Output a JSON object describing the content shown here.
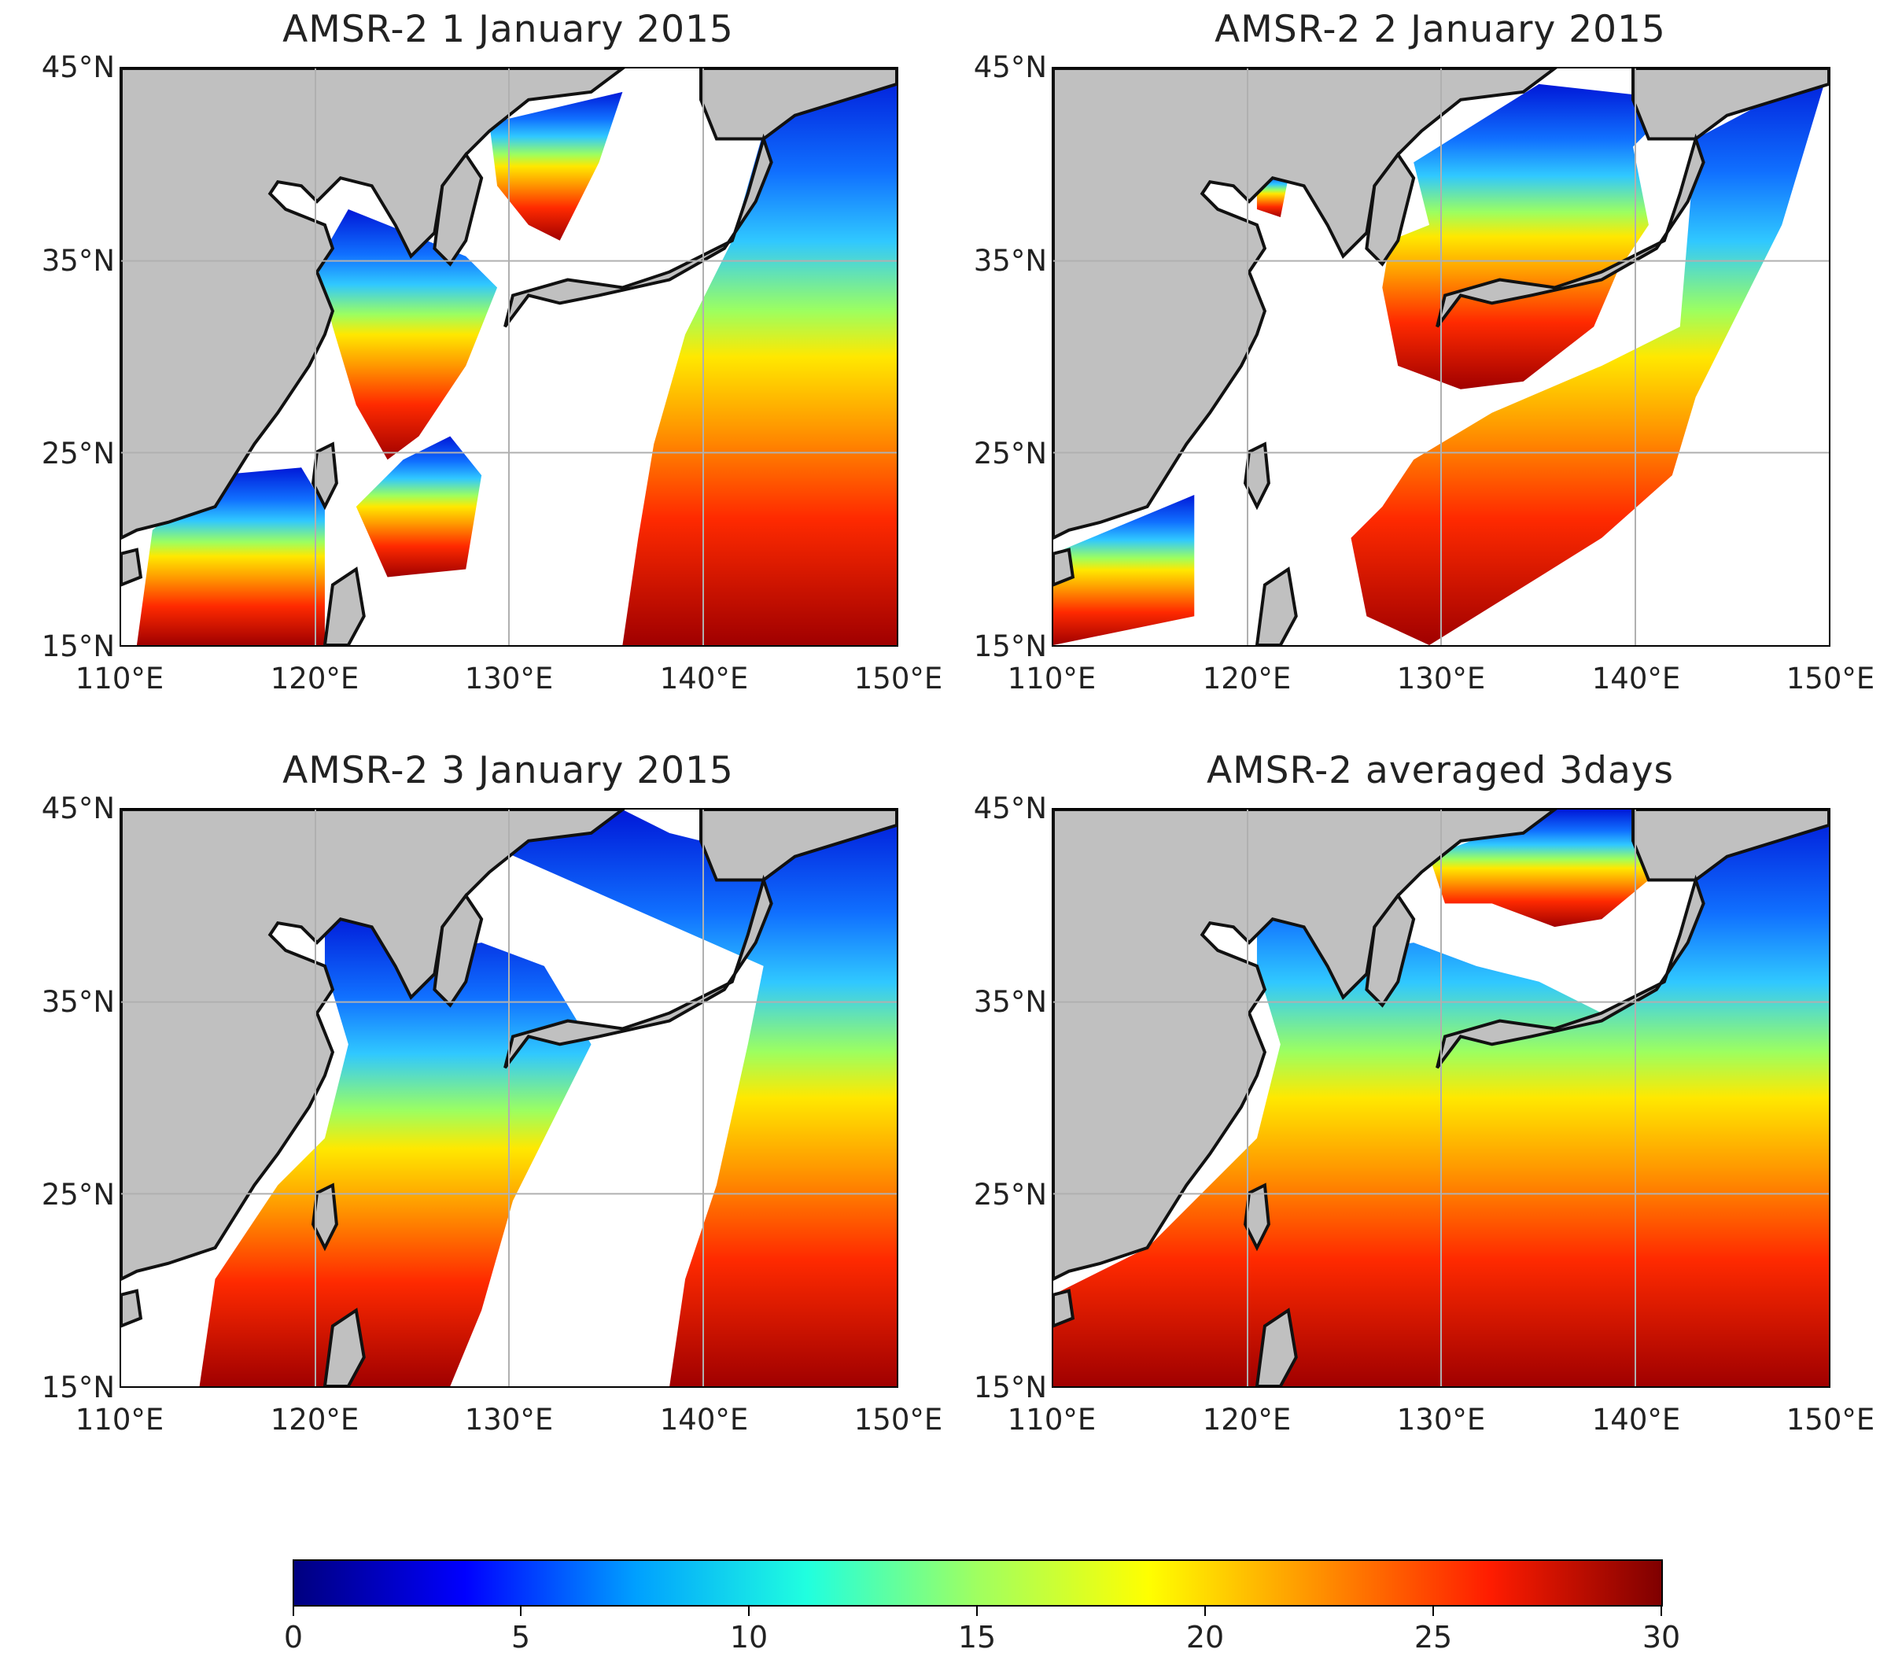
{
  "figure": {
    "colorbar": {
      "colors": [
        "#00007f",
        "#0000ff",
        "#00a0ff",
        "#20ffdf",
        "#a0ff60",
        "#ffff00",
        "#ff9000",
        "#ff1c00",
        "#7f0000"
      ],
      "ticks": [
        "0",
        "5",
        "10",
        "15",
        "20",
        "25",
        "30"
      ],
      "min": 0,
      "max": 30
    },
    "panels": [
      {
        "title": "AMSR-2 1 January 2015",
        "lat_labels": [
          "45°N",
          "35°N",
          "25°N",
          "15°N"
        ],
        "lon_labels": [
          "110°E",
          "120°E",
          "130°E",
          "140°E",
          "150°E"
        ]
      },
      {
        "title": "AMSR-2 2 January 2015",
        "lat_labels": [
          "45°N",
          "35°N",
          "25°N",
          "15°N"
        ],
        "lon_labels": [
          "110°E",
          "120°E",
          "130°E",
          "140°E",
          "150°E"
        ]
      },
      {
        "title": "AMSR-2 3 January 2015",
        "lat_labels": [
          "45°N",
          "35°N",
          "25°N",
          "15°N"
        ],
        "lon_labels": [
          "110°E",
          "120°E",
          "130°E",
          "140°E",
          "150°E"
        ]
      },
      {
        "title": "AMSR-2 averaged 3days",
        "lat_labels": [
          "45°N",
          "35°N",
          "25°N",
          "15°N"
        ],
        "lon_labels": [
          "110°E",
          "120°E",
          "130°E",
          "140°E",
          "150°E"
        ]
      }
    ],
    "land_color": "#c0c0c0",
    "coast_color": "#111111",
    "grid_color": "#b0b0b0"
  }
}
